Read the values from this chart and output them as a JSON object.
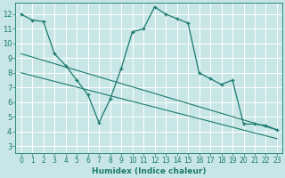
{
  "xlabel": "Humidex (Indice chaleur)",
  "bg_color": "#c8e6e6",
  "grid_color": "#ffffff",
  "line_color": "#1a7a6e",
  "xlim": [
    -0.5,
    23.5
  ],
  "ylim": [
    2.5,
    12.8
  ],
  "yticks": [
    3,
    4,
    5,
    6,
    7,
    8,
    9,
    10,
    11,
    12
  ],
  "xticks": [
    0,
    1,
    2,
    3,
    4,
    5,
    6,
    7,
    8,
    9,
    10,
    11,
    12,
    13,
    14,
    15,
    16,
    17,
    18,
    19,
    20,
    21,
    22,
    23
  ],
  "curve1_x": [
    0,
    1,
    2,
    3,
    4,
    5,
    6,
    7,
    8,
    9,
    10,
    11,
    12,
    13,
    14,
    15,
    16,
    17,
    18,
    19,
    20,
    21,
    22,
    23
  ],
  "curve1_y": [
    12,
    11.6,
    11.5,
    9.3,
    8.5,
    7.5,
    6.5,
    4.6,
    6.2,
    8.3,
    10.8,
    11.0,
    12.5,
    12.0,
    11.7,
    11.4,
    8.0,
    7.6,
    7.2,
    7.5,
    4.5,
    4.5,
    4.4,
    4.1
  ],
  "trend1_x": [
    0,
    23
  ],
  "trend1_y": [
    9.3,
    4.1
  ],
  "trend2_x": [
    0,
    23
  ],
  "trend2_y": [
    8.0,
    3.5
  ]
}
